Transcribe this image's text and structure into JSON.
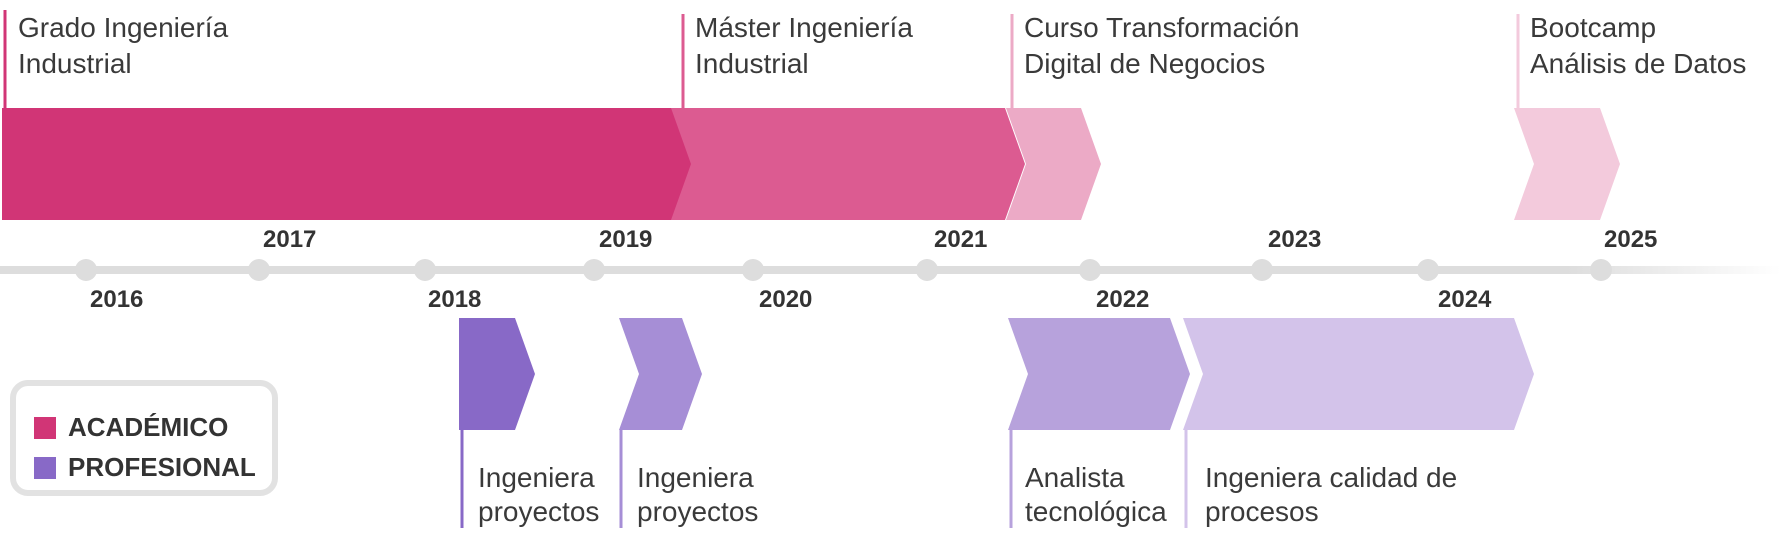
{
  "colors": {
    "academic": [
      "#d13576",
      "#dc5b91",
      "#ecaac6",
      "#f3cadc"
    ],
    "professional": [
      "#8869c7",
      "#a68ed6",
      "#b7a2dc",
      "#d3c3ea"
    ],
    "axis": "#dddddd",
    "text": "#333333"
  },
  "timeline": {
    "years": [
      "2016",
      "2017",
      "2018",
      "2019",
      "2020",
      "2021",
      "2022",
      "2023",
      "2024",
      "2025"
    ]
  },
  "academic": [
    {
      "line1": "Grado Ingeniería",
      "line2": "Industrial",
      "start_year": 2016,
      "end_year": 2019
    },
    {
      "line1": "Máster Ingeniería",
      "line2": "Industrial",
      "start_year": 2019,
      "end_year": 2021
    },
    {
      "line1": "Curso Transformación",
      "line2": "Digital de Negocios",
      "start_year": 2021,
      "end_year": 2022
    },
    {
      "line1": "Bootcamp",
      "line2": "Análisis de Datos",
      "start_year": 2024,
      "end_year": 2025
    }
  ],
  "professional": [
    {
      "line1": "Ingeniera",
      "line2": "proyectos",
      "start_year": 2018,
      "end_year": 2019
    },
    {
      "line1": "Ingeniera",
      "line2": "proyectos",
      "start_year": 2019,
      "end_year": 2020
    },
    {
      "line1": "Analista",
      "line2": "tecnológica",
      "start_year": 2021,
      "end_year": 2022
    },
    {
      "line1": "Ingeniera calidad de",
      "line2": "procesos",
      "start_year": 2022,
      "end_year": 2024
    }
  ],
  "legend": {
    "academic_label": "ACADÉMICO",
    "professional_label": "PROFESIONAL"
  }
}
